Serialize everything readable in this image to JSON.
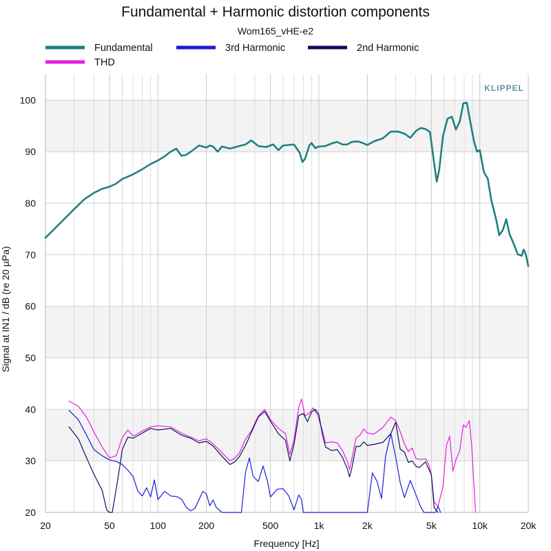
{
  "chart_data": {
    "type": "line",
    "title": "Fundamental + Harmonic distortion components",
    "subtitle": "Wom165_vHE-e2",
    "xlabel": "Frequency [Hz]",
    "ylabel": "Signal at IN1 / dB (re 20 µPa)",
    "x_scale": "log",
    "xlim": [
      20,
      20000
    ],
    "ylim": [
      20,
      105
    ],
    "x_ticks": [
      {
        "value": 20,
        "label": "20"
      },
      {
        "value": 50,
        "label": "50"
      },
      {
        "value": 100,
        "label": "100"
      },
      {
        "value": 200,
        "label": "200"
      },
      {
        "value": 500,
        "label": "500"
      },
      {
        "value": 1000,
        "label": "1k"
      },
      {
        "value": 2000,
        "label": "2k"
      },
      {
        "value": 5000,
        "label": "5k"
      },
      {
        "value": 10000,
        "label": "10k"
      },
      {
        "value": 20000,
        "label": "20k"
      }
    ],
    "y_ticks": [
      20,
      30,
      40,
      50,
      60,
      70,
      80,
      90,
      100
    ],
    "grid": true,
    "legend_position": "top",
    "watermark": "KLIPPEL",
    "series": [
      {
        "name": "Fundamental",
        "color": "#1f8080",
        "stroke": 2.6,
        "points": [
          [
            20,
            73.3
          ],
          [
            25,
            76.3
          ],
          [
            30,
            78.8
          ],
          [
            35,
            80.8
          ],
          [
            40,
            82.0
          ],
          [
            45,
            82.8
          ],
          [
            50,
            83.2
          ],
          [
            55,
            83.8
          ],
          [
            60,
            84.7
          ],
          [
            70,
            85.6
          ],
          [
            80,
            86.6
          ],
          [
            90,
            87.6
          ],
          [
            100,
            88.3
          ],
          [
            110,
            89.1
          ],
          [
            120,
            90.0
          ],
          [
            130,
            90.6
          ],
          [
            140,
            89.2
          ],
          [
            150,
            89.4
          ],
          [
            160,
            90.0
          ],
          [
            180,
            91.2
          ],
          [
            200,
            90.8
          ],
          [
            210,
            91.2
          ],
          [
            220,
            91.0
          ],
          [
            235,
            90.0
          ],
          [
            250,
            91.0
          ],
          [
            280,
            90.6
          ],
          [
            320,
            91.1
          ],
          [
            350,
            91.4
          ],
          [
            380,
            92.2
          ],
          [
            420,
            91.1
          ],
          [
            470,
            90.9
          ],
          [
            520,
            91.4
          ],
          [
            560,
            90.3
          ],
          [
            600,
            91.2
          ],
          [
            650,
            91.3
          ],
          [
            700,
            91.4
          ],
          [
            760,
            89.8
          ],
          [
            790,
            88.0
          ],
          [
            820,
            88.6
          ],
          [
            870,
            91.1
          ],
          [
            900,
            91.7
          ],
          [
            950,
            90.7
          ],
          [
            1000,
            91.0
          ],
          [
            1100,
            91.1
          ],
          [
            1200,
            91.6
          ],
          [
            1300,
            91.9
          ],
          [
            1400,
            91.4
          ],
          [
            1500,
            91.4
          ],
          [
            1600,
            91.9
          ],
          [
            1750,
            92.0
          ],
          [
            1900,
            91.6
          ],
          [
            2000,
            91.3
          ],
          [
            2200,
            92.0
          ],
          [
            2500,
            92.6
          ],
          [
            2800,
            93.9
          ],
          [
            3100,
            93.9
          ],
          [
            3400,
            93.5
          ],
          [
            3700,
            92.7
          ],
          [
            4000,
            94.0
          ],
          [
            4300,
            94.6
          ],
          [
            4600,
            94.4
          ],
          [
            4900,
            93.8
          ],
          [
            5200,
            87.8
          ],
          [
            5400,
            84.2
          ],
          [
            5600,
            86.6
          ],
          [
            5900,
            93.0
          ],
          [
            6300,
            96.4
          ],
          [
            6700,
            96.8
          ],
          [
            7100,
            94.3
          ],
          [
            7500,
            95.8
          ],
          [
            7900,
            99.4
          ],
          [
            8300,
            99.5
          ],
          [
            8700,
            96.0
          ],
          [
            9200,
            92.0
          ],
          [
            9600,
            90.0
          ],
          [
            10000,
            90.3
          ],
          [
            10600,
            86.0
          ],
          [
            11200,
            84.8
          ],
          [
            11800,
            80.5
          ],
          [
            12600,
            77.0
          ],
          [
            13200,
            73.8
          ],
          [
            13900,
            74.8
          ],
          [
            14600,
            76.9
          ],
          [
            15300,
            74.0
          ],
          [
            16200,
            72.2
          ],
          [
            17200,
            70.1
          ],
          [
            18200,
            69.8
          ],
          [
            18700,
            71.0
          ],
          [
            19300,
            70.1
          ],
          [
            20000,
            67.8
          ]
        ]
      },
      {
        "name": "3rd Harmonic",
        "color": "#1a1ad6",
        "stroke": 1.2,
        "points": [
          [
            28,
            39.8
          ],
          [
            32,
            38.0
          ],
          [
            36,
            35.0
          ],
          [
            40,
            32.2
          ],
          [
            45,
            31.0
          ],
          [
            50,
            30.2
          ],
          [
            55,
            29.9
          ],
          [
            60,
            29.3
          ],
          [
            65,
            28.2
          ],
          [
            70,
            27.0
          ],
          [
            75,
            24.1
          ],
          [
            80,
            23.2
          ],
          [
            85,
            24.8
          ],
          [
            90,
            23.0
          ],
          [
            95,
            26.3
          ],
          [
            100,
            22.5
          ],
          [
            110,
            24.1
          ],
          [
            120,
            23.2
          ],
          [
            130,
            23.1
          ],
          [
            140,
            22.6
          ],
          [
            150,
            21.0
          ],
          [
            160,
            20.3
          ],
          [
            170,
            20.8
          ],
          [
            180,
            22.5
          ],
          [
            190,
            24.1
          ],
          [
            200,
            23.6
          ],
          [
            210,
            21.3
          ],
          [
            220,
            22.4
          ],
          [
            230,
            21.0
          ],
          [
            250,
            20.0
          ],
          [
            330,
            20.0
          ],
          [
            350,
            27.8
          ],
          [
            370,
            30.6
          ],
          [
            390,
            27.0
          ],
          [
            420,
            26.0
          ],
          [
            450,
            29.0
          ],
          [
            480,
            26.0
          ],
          [
            500,
            23.0
          ],
          [
            550,
            24.5
          ],
          [
            600,
            24.6
          ],
          [
            650,
            23.2
          ],
          [
            700,
            20.5
          ],
          [
            750,
            23.4
          ],
          [
            780,
            22.5
          ],
          [
            800,
            20.0
          ],
          [
            2000,
            20.0
          ],
          [
            2150,
            27.7
          ],
          [
            2300,
            26.0
          ],
          [
            2450,
            22.7
          ],
          [
            2600,
            31.0
          ],
          [
            2800,
            35.3
          ],
          [
            3000,
            30.8
          ],
          [
            3200,
            25.8
          ],
          [
            3400,
            22.9
          ],
          [
            3700,
            26.2
          ],
          [
            3900,
            24.4
          ],
          [
            4100,
            22.6
          ],
          [
            4300,
            21.0
          ],
          [
            4500,
            20.0
          ],
          [
            5300,
            20.0
          ],
          [
            5500,
            21.2
          ],
          [
            5700,
            20.0
          ]
        ]
      },
      {
        "name": "2nd Harmonic",
        "color": "#0d0d5a",
        "stroke": 1.2,
        "points": [
          [
            28,
            36.6
          ],
          [
            32,
            34.3
          ],
          [
            36,
            30.6
          ],
          [
            40,
            27.4
          ],
          [
            45,
            24.3
          ],
          [
            48,
            20.5
          ],
          [
            50,
            20.0
          ],
          [
            52,
            20.0
          ],
          [
            55,
            24.5
          ],
          [
            58,
            29.0
          ],
          [
            60,
            32.2
          ],
          [
            65,
            34.6
          ],
          [
            70,
            34.4
          ],
          [
            80,
            35.4
          ],
          [
            90,
            36.3
          ],
          [
            100,
            36.0
          ],
          [
            120,
            36.3
          ],
          [
            140,
            35.0
          ],
          [
            160,
            34.4
          ],
          [
            180,
            33.5
          ],
          [
            200,
            33.8
          ],
          [
            220,
            32.9
          ],
          [
            250,
            30.9
          ],
          [
            280,
            29.3
          ],
          [
            300,
            29.8
          ],
          [
            320,
            30.8
          ],
          [
            350,
            33.0
          ],
          [
            380,
            35.5
          ],
          [
            420,
            38.5
          ],
          [
            460,
            39.6
          ],
          [
            500,
            37.7
          ],
          [
            560,
            35.3
          ],
          [
            620,
            34.0
          ],
          [
            660,
            30.0
          ],
          [
            700,
            33.2
          ],
          [
            750,
            38.8
          ],
          [
            800,
            39.2
          ],
          [
            850,
            37.6
          ],
          [
            900,
            39.5
          ],
          [
            950,
            40.0
          ],
          [
            1000,
            39.0
          ],
          [
            1050,
            35.2
          ],
          [
            1100,
            32.7
          ],
          [
            1200,
            32.0
          ],
          [
            1300,
            32.2
          ],
          [
            1400,
            30.7
          ],
          [
            1500,
            28.5
          ],
          [
            1550,
            26.9
          ],
          [
            1600,
            28.5
          ],
          [
            1700,
            32.8
          ],
          [
            1800,
            32.8
          ],
          [
            1900,
            33.7
          ],
          [
            2000,
            33.0
          ],
          [
            2200,
            33.2
          ],
          [
            2500,
            33.6
          ],
          [
            2800,
            35.3
          ],
          [
            3000,
            37.5
          ],
          [
            3200,
            32.3
          ],
          [
            3400,
            31.7
          ],
          [
            3600,
            29.7
          ],
          [
            3800,
            30.0
          ],
          [
            4000,
            29.0
          ],
          [
            4200,
            28.7
          ],
          [
            4600,
            29.8
          ],
          [
            5000,
            27.3
          ],
          [
            5200,
            21.0
          ],
          [
            5500,
            20.0
          ]
        ]
      },
      {
        "name": "THD",
        "color": "#e020e0",
        "stroke": 1.2,
        "points": [
          [
            28,
            41.6
          ],
          [
            32,
            40.6
          ],
          [
            36,
            38.5
          ],
          [
            40,
            35.6
          ],
          [
            45,
            32.7
          ],
          [
            50,
            30.6
          ],
          [
            55,
            31.0
          ],
          [
            60,
            34.5
          ],
          [
            65,
            36.0
          ],
          [
            70,
            34.8
          ],
          [
            80,
            35.8
          ],
          [
            90,
            36.6
          ],
          [
            100,
            36.8
          ],
          [
            120,
            36.6
          ],
          [
            140,
            35.4
          ],
          [
            160,
            34.6
          ],
          [
            180,
            33.9
          ],
          [
            200,
            34.3
          ],
          [
            220,
            33.3
          ],
          [
            250,
            31.6
          ],
          [
            280,
            30.0
          ],
          [
            300,
            30.5
          ],
          [
            320,
            31.5
          ],
          [
            350,
            34.2
          ],
          [
            380,
            35.8
          ],
          [
            420,
            38.7
          ],
          [
            460,
            40.0
          ],
          [
            500,
            38.0
          ],
          [
            560,
            36.3
          ],
          [
            620,
            35.3
          ],
          [
            660,
            31.3
          ],
          [
            700,
            34.0
          ],
          [
            750,
            40.5
          ],
          [
            780,
            42.0
          ],
          [
            820,
            38.7
          ],
          [
            880,
            39.4
          ],
          [
            920,
            40.3
          ],
          [
            980,
            39.0
          ],
          [
            1050,
            36.0
          ],
          [
            1100,
            33.5
          ],
          [
            1200,
            33.7
          ],
          [
            1300,
            33.5
          ],
          [
            1400,
            32.0
          ],
          [
            1500,
            30.0
          ],
          [
            1550,
            28.3
          ],
          [
            1600,
            30.3
          ],
          [
            1700,
            34.4
          ],
          [
            1800,
            35.0
          ],
          [
            1900,
            36.2
          ],
          [
            2000,
            35.4
          ],
          [
            2200,
            35.2
          ],
          [
            2500,
            36.5
          ],
          [
            2800,
            38.5
          ],
          [
            3000,
            37.8
          ],
          [
            3200,
            35.7
          ],
          [
            3400,
            33.3
          ],
          [
            3600,
            31.8
          ],
          [
            3800,
            32.5
          ],
          [
            4000,
            30.5
          ],
          [
            4200,
            30.3
          ],
          [
            4600,
            30.4
          ],
          [
            4800,
            29.5
          ],
          [
            5000,
            27.3
          ],
          [
            5200,
            22.0
          ],
          [
            5500,
            21.2
          ],
          [
            5900,
            25.0
          ],
          [
            6200,
            33.0
          ],
          [
            6500,
            34.8
          ],
          [
            6800,
            28.0
          ],
          [
            7100,
            30.2
          ],
          [
            7500,
            32.0
          ],
          [
            7900,
            37.0
          ],
          [
            8200,
            36.5
          ],
          [
            8600,
            37.8
          ],
          [
            8900,
            33.0
          ],
          [
            9200,
            25.0
          ],
          [
            9400,
            20.0
          ]
        ]
      }
    ]
  }
}
